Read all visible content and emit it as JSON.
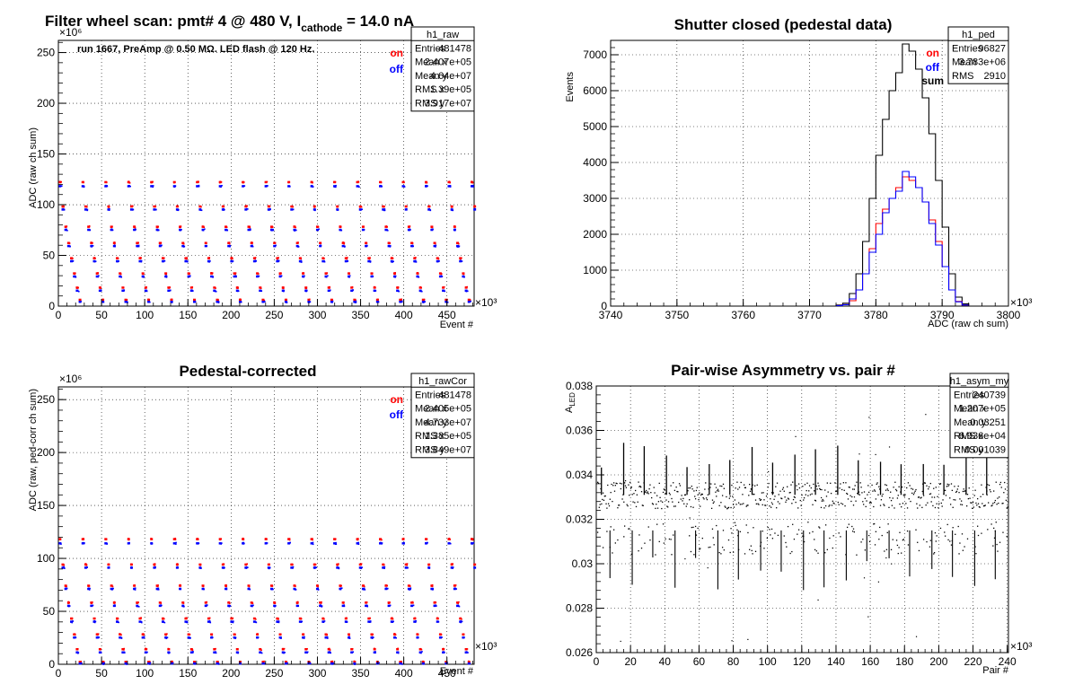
{
  "chart_data": [
    {
      "type": "scatter",
      "title_parts": [
        "Filter wheel scan: pmt#   4 @   480 V, I",
        "cathode",
        " = 14.0 nA"
      ],
      "subtitle": "run 1667, PreAmp @ 0.50 MΩ. LED flash @  120 Hz.",
      "xlabel": "Event #",
      "ylabel": "ADC (raw ch sum)",
      "x_multiplier": "×10³",
      "y_multiplier": "×10⁶",
      "xlim": [
        0,
        481.5
      ],
      "ylim": [
        0,
        262
      ],
      "xticks": [
        0,
        50,
        100,
        150,
        200,
        250,
        300,
        350,
        400,
        450
      ],
      "yticks": [
        0,
        50,
        100,
        150,
        200,
        250
      ],
      "grid": true,
      "legend": {
        "placement": "top-right",
        "entries": [
          {
            "label": "on",
            "color": "#ff0000"
          },
          {
            "label": "off",
            "color": "#0000ff"
          }
        ]
      },
      "stats": {
        "name": "h1_raw",
        "rows": [
          [
            "Entries",
            "481478"
          ],
          [
            "Mean x",
            "2.407e+05"
          ],
          [
            "Mean y",
            "4.64e+07"
          ],
          [
            "RMS x",
            "1.39e+05"
          ],
          [
            "RMS y",
            "3.917e+07"
          ]
        ]
      },
      "filter_cycle_period": 26.5,
      "levels_on": [
        122,
        98,
        78,
        62,
        47,
        32,
        18,
        6
      ],
      "levels_off": [
        118,
        95,
        75,
        59,
        44,
        29,
        15,
        4
      ],
      "series": [
        {
          "name": "on",
          "color": "#ff0000"
        },
        {
          "name": "off",
          "color": "#0000ff"
        }
      ]
    },
    {
      "type": "line",
      "title": "Shutter closed (pedestal data)",
      "xlabel": "ADC (raw ch sum)",
      "ylabel": "Events",
      "x_multiplier": "×10³",
      "xlim": [
        3740,
        3800
      ],
      "ylim": [
        0,
        7400
      ],
      "xticks": [
        3740,
        3750,
        3760,
        3770,
        3780,
        3790,
        3800
      ],
      "yticks": [
        0,
        1000,
        2000,
        3000,
        4000,
        5000,
        6000,
        7000
      ],
      "grid": true,
      "legend": {
        "placement": "top-right",
        "entries": [
          {
            "label": "on",
            "color": "#ff0000"
          },
          {
            "label": "off",
            "color": "#0000ff"
          },
          {
            "label": "sum",
            "color": "#000000"
          }
        ]
      },
      "stats": {
        "name": "h1_ped",
        "rows": [
          [
            "Entries",
            "96827"
          ],
          [
            "Mean",
            "3.783e+06"
          ],
          [
            "RMS",
            "2910"
          ]
        ]
      },
      "bin_edges_start": 3774,
      "bin_width": 1,
      "series": [
        {
          "name": "sum",
          "color": "#000000",
          "values": [
            30,
            80,
            350,
            900,
            1800,
            3000,
            4200,
            5200,
            6000,
            6500,
            7300,
            7100,
            6600,
            5800,
            4800,
            3500,
            2200,
            900,
            250,
            60
          ]
        },
        {
          "name": "on",
          "color": "#ff0000",
          "values": [
            15,
            40,
            150,
            450,
            900,
            1600,
            2300,
            2700,
            3000,
            3300,
            3600,
            3500,
            3300,
            2900,
            2400,
            1800,
            1100,
            450,
            130,
            30
          ]
        },
        {
          "name": "off",
          "color": "#0000ff",
          "values": [
            15,
            40,
            200,
            450,
            900,
            1500,
            2000,
            2600,
            3000,
            3200,
            3750,
            3600,
            3300,
            2900,
            2300,
            1700,
            1100,
            450,
            120,
            30
          ]
        }
      ]
    },
    {
      "type": "scatter",
      "title": "Pedestal-corrected",
      "xlabel": "Event #",
      "ylabel": "ADC (raw, ped-corr ch sum)",
      "x_multiplier": "×10³",
      "y_multiplier": "×10⁶",
      "xlim": [
        0,
        481.5
      ],
      "ylim": [
        0,
        262
      ],
      "xticks": [
        0,
        50,
        100,
        150,
        200,
        250,
        300,
        350,
        400,
        450
      ],
      "yticks": [
        0,
        50,
        100,
        150,
        200,
        250
      ],
      "grid": true,
      "legend": {
        "placement": "top-right",
        "entries": [
          {
            "label": "on",
            "color": "#ff0000"
          },
          {
            "label": "off",
            "color": "#0000ff"
          }
        ]
      },
      "stats": {
        "name": "h1_rawCor",
        "rows": [
          [
            "Entries",
            "481478"
          ],
          [
            "Mean x",
            "2.405e+05"
          ],
          [
            "Mean y",
            "4.733e+07"
          ],
          [
            "RMS x",
            "1.385e+05"
          ],
          [
            "RMS y",
            "3.849e+07"
          ]
        ]
      },
      "filter_cycle_period": 26.5,
      "levels_on": [
        118,
        94,
        74,
        58,
        43,
        28,
        14,
        2
      ],
      "levels_off": [
        114,
        91,
        71,
        55,
        40,
        25,
        11,
        0.5
      ],
      "series": [
        {
          "name": "on",
          "color": "#ff0000"
        },
        {
          "name": "off",
          "color": "#0000ff"
        }
      ]
    },
    {
      "type": "scatter",
      "title": "Pair-wise Asymmetry vs. pair #",
      "xlabel": "Pair #",
      "ylabel_parts": [
        "A",
        "LED"
      ],
      "x_multiplier": "×10³",
      "xlim": [
        0,
        240.7
      ],
      "ylim": [
        0.026,
        0.038
      ],
      "xticks": [
        0,
        20,
        40,
        60,
        80,
        100,
        120,
        140,
        160,
        180,
        200,
        220,
        240
      ],
      "yticks": [
        0.026,
        0.028,
        0.03,
        0.032,
        0.034,
        0.036,
        0.038
      ],
      "ytick_labels": [
        "0.026",
        "0.028",
        "0.03",
        "0.032",
        "0.034",
        "0.036",
        "0.038"
      ],
      "grid": true,
      "stats": {
        "name": "h1_asym_my",
        "rows": [
          [
            "Entries",
            "240739"
          ],
          [
            "Mean x",
            "1.207e+05"
          ],
          [
            "Mean y",
            "0.03251"
          ],
          [
            "RMS x",
            "6.936e+04"
          ],
          [
            "RMS y",
            "0.001039"
          ]
        ]
      },
      "band_center": 0.0331,
      "band_halfwidth": 0.0006,
      "spike_positions": [
        3,
        16,
        28,
        41,
        53,
        66,
        78,
        91,
        103,
        116,
        128,
        141,
        153,
        166,
        178,
        191,
        203,
        216,
        228
      ],
      "series": [
        {
          "name": "asymmetry",
          "color": "#000000"
        }
      ]
    }
  ]
}
